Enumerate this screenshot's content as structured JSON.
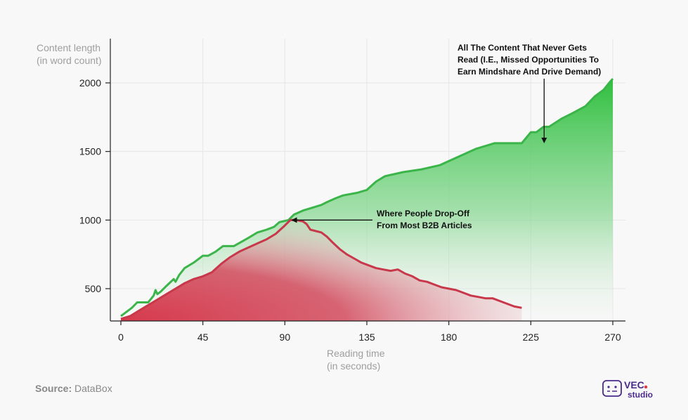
{
  "chart_data": {
    "type": "area",
    "ylabel": [
      "Content length",
      "(in word count)"
    ],
    "xlabel": [
      "Reading time",
      "(in seconds)"
    ],
    "x_ticks": [
      0,
      45,
      90,
      135,
      180,
      225,
      270
    ],
    "y_ticks": [
      500,
      1000,
      1500,
      2000
    ],
    "xlim": [
      0,
      270
    ],
    "ylim": [
      270,
      2300
    ],
    "grid": true,
    "series": [
      {
        "color": "#3bb54a",
        "points": [
          [
            0,
            300
          ],
          [
            3,
            330
          ],
          [
            6,
            360
          ],
          [
            9,
            400
          ],
          [
            12,
            400
          ],
          [
            15,
            400
          ],
          [
            18,
            450
          ],
          [
            19,
            490
          ],
          [
            20,
            460
          ],
          [
            22,
            480
          ],
          [
            25,
            520
          ],
          [
            29,
            570
          ],
          [
            30,
            550
          ],
          [
            32,
            600
          ],
          [
            35,
            650
          ],
          [
            40,
            690
          ],
          [
            45,
            740
          ],
          [
            48,
            740
          ],
          [
            52,
            770
          ],
          [
            56,
            810
          ],
          [
            62,
            810
          ],
          [
            66,
            840
          ],
          [
            70,
            870
          ],
          [
            75,
            910
          ],
          [
            80,
            930
          ],
          [
            84,
            950
          ],
          [
            87,
            985
          ],
          [
            92,
            1000
          ],
          [
            95,
            1040
          ],
          [
            100,
            1070
          ],
          [
            105,
            1090
          ],
          [
            110,
            1110
          ],
          [
            113,
            1130
          ],
          [
            118,
            1160
          ],
          [
            122,
            1180
          ],
          [
            130,
            1200
          ],
          [
            135,
            1220
          ],
          [
            140,
            1280
          ],
          [
            145,
            1320
          ],
          [
            155,
            1350
          ],
          [
            165,
            1370
          ],
          [
            175,
            1400
          ],
          [
            185,
            1460
          ],
          [
            195,
            1520
          ],
          [
            205,
            1560
          ],
          [
            212,
            1560
          ],
          [
            220,
            1560
          ],
          [
            225,
            1640
          ],
          [
            228,
            1640
          ],
          [
            232,
            1680
          ],
          [
            235,
            1680
          ],
          [
            242,
            1740
          ],
          [
            248,
            1780
          ],
          [
            255,
            1830
          ],
          [
            260,
            1900
          ],
          [
            265,
            1950
          ],
          [
            268,
            2000
          ],
          [
            270,
            2030
          ]
        ]
      },
      {
        "color": "#c8374a",
        "points": [
          [
            0,
            280
          ],
          [
            5,
            300
          ],
          [
            10,
            340
          ],
          [
            15,
            380
          ],
          [
            20,
            420
          ],
          [
            25,
            460
          ],
          [
            30,
            500
          ],
          [
            35,
            540
          ],
          [
            40,
            570
          ],
          [
            45,
            590
          ],
          [
            50,
            620
          ],
          [
            55,
            680
          ],
          [
            60,
            730
          ],
          [
            65,
            770
          ],
          [
            70,
            800
          ],
          [
            75,
            830
          ],
          [
            80,
            860
          ],
          [
            85,
            900
          ],
          [
            90,
            960
          ],
          [
            93,
            1000
          ],
          [
            96,
            1000
          ],
          [
            100,
            990
          ],
          [
            102,
            970
          ],
          [
            104,
            930
          ],
          [
            107,
            920
          ],
          [
            110,
            910
          ],
          [
            113,
            880
          ],
          [
            116,
            840
          ],
          [
            120,
            790
          ],
          [
            124,
            750
          ],
          [
            128,
            720
          ],
          [
            132,
            690
          ],
          [
            136,
            670
          ],
          [
            140,
            650
          ],
          [
            144,
            640
          ],
          [
            148,
            630
          ],
          [
            152,
            640
          ],
          [
            156,
            610
          ],
          [
            160,
            590
          ],
          [
            164,
            560
          ],
          [
            168,
            550
          ],
          [
            172,
            530
          ],
          [
            176,
            510
          ],
          [
            180,
            500
          ],
          [
            184,
            490
          ],
          [
            188,
            470
          ],
          [
            192,
            450
          ],
          [
            196,
            440
          ],
          [
            200,
            430
          ],
          [
            204,
            430
          ],
          [
            208,
            410
          ],
          [
            212,
            390
          ],
          [
            216,
            370
          ],
          [
            220,
            360
          ]
        ]
      }
    ],
    "annotations": [
      {
        "lines": [
          "All The Content That Never Gets",
          "Read (I.E., Missed Opportunities To",
          "Earn Mindshare And Drive Demand)"
        ],
        "arrow_to": [
          230,
          1500
        ]
      },
      {
        "lines": [
          "Where People Drop-Off",
          "From Most B2B Articles"
        ],
        "arrow_to": [
          92,
          1000
        ]
      }
    ]
  },
  "source_label": "Source:",
  "source_value": "DataBox",
  "logo": {
    "top": "VEC",
    "bottom": "studio",
    "accent": "#e8363c",
    "brand": "#4a2a8c"
  }
}
